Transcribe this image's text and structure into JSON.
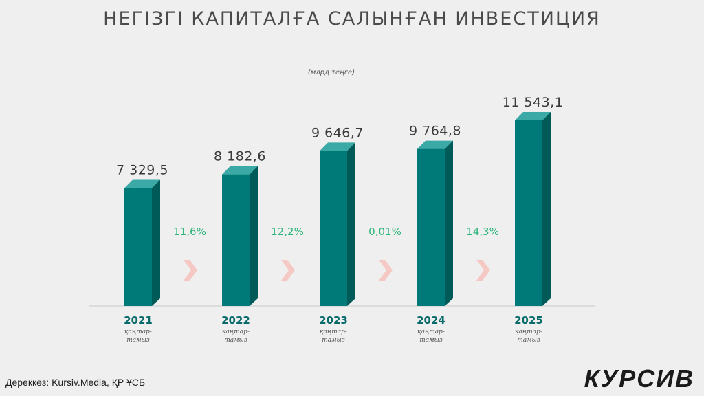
{
  "title": "НЕГІЗГІ КАПИТАЛҒА САЛЫНҒАН ИНВЕСТИЦИЯ",
  "unit": "(млрд теңге)",
  "source": "Дереккөз: Kursiv.Media, ҚР ҰСБ",
  "logo": "КУРСИВ",
  "colors": {
    "bar_front": "#007a78",
    "bar_side": "#005a58",
    "bar_top": "#3ba9a5",
    "growth_text": "#2db57b",
    "arrow": "#f6c8c4"
  },
  "chart_data": {
    "type": "bar",
    "categories": [
      "2021",
      "2022",
      "2023",
      "2024",
      "2025"
    ],
    "period_label": [
      "қаңтар-",
      "тамыз"
    ],
    "values": [
      7329.5,
      8182.6,
      9646.7,
      9764.8,
      11543.1
    ],
    "value_labels": [
      "7 329,5",
      "8 182,6",
      "9 646,7",
      "9 764,8",
      "11 543,1"
    ],
    "growth_labels": [
      "11,6%",
      "12,2%",
      "0,01%",
      "14,3%"
    ],
    "ylim": [
      0,
      11543.1
    ],
    "title": "НЕГІЗГІ КАПИТАЛҒА САЛЫНҒАН ИНВЕСТИЦИЯ",
    "ylabel": "",
    "xlabel": "",
    "grid": false,
    "legend": "none"
  }
}
